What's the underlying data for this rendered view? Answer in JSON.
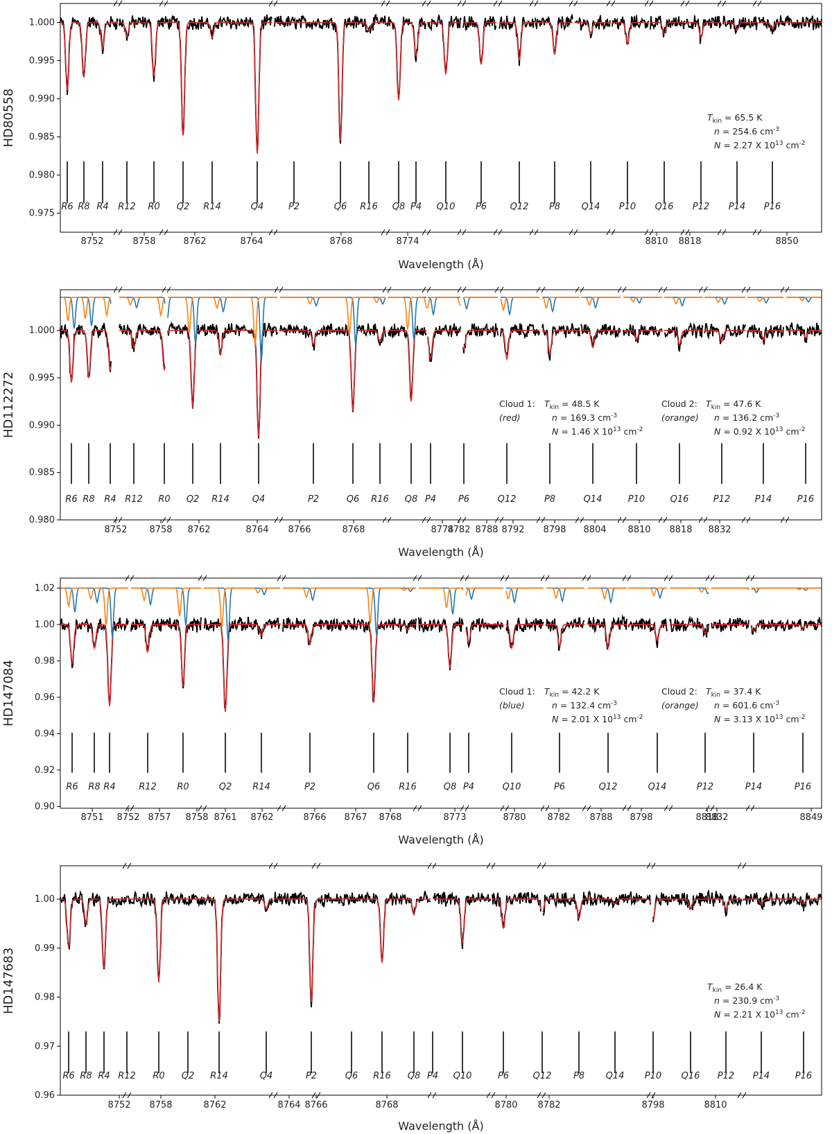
{
  "chart_data": [
    {
      "type": "line",
      "ylabel": "HD80558",
      "xlabel": "Wavelength (Å)",
      "ylim": [
        0.9725,
        1.0025
      ],
      "yticks": [
        "1.000",
        "0.995",
        "0.990",
        "0.985",
        "0.980",
        "0.975"
      ],
      "ytick_values": [
        1.0,
        0.995,
        0.99,
        0.985,
        0.98,
        0.975
      ],
      "xtick_labels": [
        "8752",
        "8758",
        "8762",
        "8764",
        "8768",
        "8774",
        "8810",
        "8818",
        "8850"
      ],
      "line_labels": [
        "R6",
        "R8",
        "R4",
        "R12",
        "R0",
        "Q2",
        "R14",
        "Q4",
        "P2",
        "Q6",
        "R16",
        "Q8",
        "P4",
        "Q10",
        "P6",
        "Q12",
        "P8",
        "Q14",
        "P10",
        "Q16",
        "P12",
        "P14",
        "P16"
      ],
      "line_markers": {
        "top": 0.9818,
        "bottom": 0.9763
      },
      "series": [
        {
          "name": "observed",
          "color": "#000000"
        },
        {
          "name": "fit",
          "color": "#d62728",
          "dips": {
            "R6": 0.0089,
            "R8": 0.0072,
            "R4": 0.0035,
            "R12": 0.0018,
            "R0": 0.007,
            "Q2": 0.0148,
            "R14": 0.002,
            "Q4": 0.0172,
            "P2": 0.0,
            "Q6": 0.0155,
            "R16": 0.001,
            "Q8": 0.0102,
            "P4": 0.0045,
            "Q10": 0.0068,
            "P6": 0.0055,
            "Q12": 0.005,
            "P8": 0.0042,
            "Q14": 0.0015,
            "P10": 0.0028,
            "Q16": 0.0015,
            "P12": 0.002,
            "P14": 0.001,
            "P16": 0.0008
          }
        }
      ],
      "annotation": {
        "col1": {
          "c1": "",
          "c2": "",
          "t_sym": "T",
          "t_sub": "kin",
          "t_val": " = 65.5 K",
          "n": "n",
          "n_val": " = 254.6 cm",
          "n_exp": "-3",
          "N": "N",
          "N_val": " = 2.27 X 10",
          "N_exp": "13",
          "N_unit": " cm",
          "N_unit_exp": "-2"
        }
      }
    },
    {
      "type": "line",
      "ylabel": "HD112272",
      "xlabel": "Wavelength (Å)",
      "ylim": [
        0.98,
        1.0043
      ],
      "yticks": [
        "1.000",
        "0.995",
        "0.990",
        "0.985",
        "0.980"
      ],
      "ytick_values": [
        1.0,
        0.995,
        0.99,
        0.985,
        0.98
      ],
      "xtick_labels": [
        "8752",
        "8758",
        "8762",
        "8764",
        "8766",
        "8768",
        "8774",
        "8782",
        "8788",
        "8792",
        "8798",
        "8804",
        "8810",
        "8818",
        "8832"
      ],
      "line_labels": [
        "R6",
        "R8",
        "R4",
        "R12",
        "R0",
        "Q2",
        "R14",
        "Q4",
        "P2",
        "Q6",
        "R16",
        "Q8",
        "P4",
        "P6",
        "Q12",
        "P8",
        "Q14",
        "P10",
        "Q16",
        "P12",
        "P14",
        "P16"
      ],
      "line_markers": {
        "top": 0.9881,
        "bottom": 0.9838
      },
      "offset_level": 1.0035,
      "series": [
        {
          "name": "observed",
          "color": "#000000"
        },
        {
          "name": "fit cloud 1",
          "color": "#d62728",
          "dips": {
            "R6": 0.0055,
            "R8": 0.005,
            "R4": 0.0042,
            "R12": 0.0018,
            "R0": 0.0042,
            "Q2": 0.0082,
            "R14": 0.0025,
            "Q4": 0.0112,
            "P2": 0.0015,
            "Q6": 0.0085,
            "R16": 0.0012,
            "Q8": 0.0075,
            "P4": 0.003,
            "P6": 0.002,
            "Q12": 0.003,
            "P8": 0.0025,
            "Q14": 0.0018,
            "P10": 0.001,
            "Q16": 0.0015,
            "P12": 0.0012,
            "P14": 0.001,
            "P16": 0.0008
          }
        },
        {
          "name": "cloud 1 component",
          "color": "#1f77b4"
        },
        {
          "name": "cloud 2 component",
          "color": "#ff7f0e"
        }
      ],
      "annotation": {
        "col1": {
          "c1": "Cloud 1:",
          "c2": "(red)",
          "t_sym": "T",
          "t_sub": "kin",
          "t_val": " = 48.5 K",
          "n": "n",
          "n_val": " = 169.3 cm",
          "n_exp": "-3",
          "N": "N",
          "N_val": " = 1.46 X 10",
          "N_exp": "13",
          "N_unit": " cm",
          "N_unit_exp": "-2"
        },
        "col2": {
          "c1": "Cloud 2:",
          "c2": "(orange)",
          "t_sym": "T",
          "t_sub": "kin",
          "t_val": " = 47.6 K",
          "n": "n",
          "n_val": " = 136.2 cm",
          "n_exp": "-3",
          "N": "N",
          "N_val": " = 0.92 X 10",
          "N_exp": "13",
          "N_unit": " cm",
          "N_unit_exp": "-2"
        }
      }
    },
    {
      "type": "line",
      "ylabel": "HD147084",
      "xlabel": "Wavelength (Å)",
      "ylim": [
        0.899,
        1.0255
      ],
      "yticks": [
        "1.02",
        "1.00",
        "0.98",
        "0.96",
        "0.94",
        "0.92",
        "0.90"
      ],
      "ytick_values": [
        1.02,
        1.0,
        0.98,
        0.96,
        0.94,
        0.92,
        0.9
      ],
      "xtick_labels": [
        "8751",
        "8752",
        "8757",
        "8758",
        "8761",
        "8762",
        "8766",
        "8767",
        "8768",
        "8773",
        "8780",
        "8782",
        "8788",
        "8798",
        "8818",
        "8832",
        "8849"
      ],
      "line_labels": [
        "R6",
        "R8",
        "R4",
        "R12",
        "R0",
        "Q2",
        "R14",
        "P2",
        "Q6",
        "R16",
        "Q8",
        "P4",
        "Q10",
        "P6",
        "Q12",
        "Q14",
        "P12",
        "P14",
        "P16"
      ],
      "line_markers": {
        "top": 0.9405,
        "bottom": 0.9185
      },
      "offset_level": 1.02,
      "series": [
        {
          "name": "observed",
          "color": "#000000"
        },
        {
          "name": "fit",
          "color": "#d62728",
          "dips": {
            "R6": 0.022,
            "R8": 0.013,
            "R4": 0.045,
            "R12": 0.015,
            "R0": 0.034,
            "Q2": 0.048,
            "R14": 0.006,
            "P2": 0.011,
            "Q6": 0.043,
            "R16": 0.003,
            "Q8": 0.024,
            "P4": 0.01,
            "Q10": 0.013,
            "P6": 0.012,
            "Q12": 0.013,
            "Q14": 0.009,
            "P12": 0.005,
            "P14": 0.004,
            "P16": 0.002
          }
        },
        {
          "name": "cloud 1 component",
          "color": "#1f77b4"
        },
        {
          "name": "cloud 2 component",
          "color": "#ff7f0e"
        }
      ],
      "annotation": {
        "col1": {
          "c1": "Cloud 1:",
          "c2": "(blue)",
          "t_sym": "T",
          "t_sub": "kin",
          "t_val": " = 42.2 K",
          "n": "n",
          "n_val": " = 132.4 cm",
          "n_exp": "-3",
          "N": "N",
          "N_val": " = 2.01 X 10",
          "N_exp": "13",
          "N_unit": " cm",
          "N_unit_exp": "-2"
        },
        "col2": {
          "c1": "Cloud 2:",
          "c2": "(orange)",
          "t_sym": "T",
          "t_sub": "kin",
          "t_val": " = 37.4 K",
          "n": "n",
          "n_val": " = 601.6 cm",
          "n_exp": "-3",
          "N": "N",
          "N_val": " = 3.13 X 10",
          "N_exp": "13",
          "N_unit": " cm",
          "N_unit_exp": "-2"
        }
      }
    },
    {
      "type": "line",
      "ylabel": "HD147683",
      "xlabel": "Wavelength (Å)",
      "ylim": [
        0.96,
        1.0068
      ],
      "yticks": [
        "1.00",
        "0.99",
        "0.98",
        "0.97",
        "0.96"
      ],
      "ytick_values": [
        1.0,
        0.99,
        0.98,
        0.97,
        0.96
      ],
      "xtick_labels": [
        "8752",
        "8758",
        "8762",
        "8764",
        "8766",
        "8768",
        "8780",
        "8782",
        "8798",
        "8810"
      ],
      "line_labels": [
        "R6",
        "R8",
        "R4",
        "R12",
        "R0",
        "Q2",
        "R14",
        "Q4",
        "P2",
        "Q6",
        "R16",
        "Q8",
        "P4",
        "Q10",
        "P6",
        "Q12",
        "P8",
        "Q14",
        "P10",
        "Q16",
        "P12",
        "P14",
        "P16"
      ],
      "line_markers": {
        "top": 0.973,
        "bottom": 0.9645
      },
      "series": [
        {
          "name": "observed",
          "color": "#000000"
        },
        {
          "name": "fit",
          "color": "#d62728",
          "dips": {
            "R6": 0.01,
            "R8": 0.005,
            "R4": 0.014,
            "R12": 0.0,
            "R0": 0.017,
            "Q2": 0.0,
            "R14": 0.025,
            "Q4": 0.002,
            "P2": 0.021,
            "Q6": 0.0,
            "R16": 0.013,
            "Q8": 0.003,
            "P4": 0.0,
            "Q10": 0.009,
            "P6": 0.006,
            "Q12": 0.003,
            "P8": 0.004,
            "Q14": 0.001,
            "P10": 0.004,
            "Q16": 0.002,
            "P12": 0.002,
            "P14": 0.001,
            "P16": 0.001
          }
        }
      ],
      "annotation": {
        "col1": {
          "c1": "",
          "c2": "",
          "t_sym": "T",
          "t_sub": "kin",
          "t_val": " = 26.4 K",
          "n": "n",
          "n_val": " = 230.9 cm",
          "n_exp": "-3",
          "N": "N",
          "N_val": " = 2.21 X 10",
          "N_exp": "13",
          "N_unit": " cm",
          "N_unit_exp": "-2"
        }
      }
    }
  ]
}
